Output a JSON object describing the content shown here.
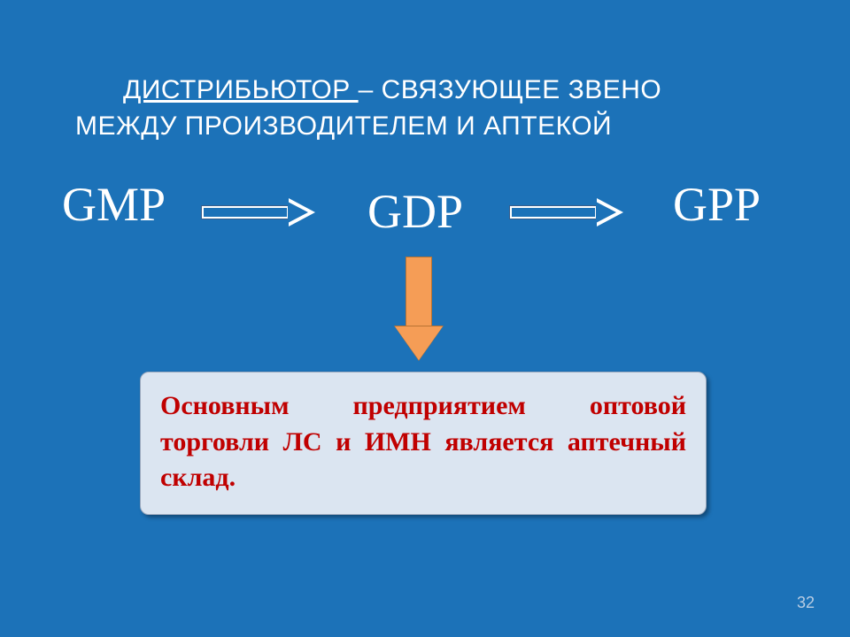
{
  "slide": {
    "background_color": "#1c72b8",
    "title": {
      "word_underlined": "ДИСТРИБЬЮТОР ",
      "rest_line1": "– СВЯЗУЮЩЕЕ ЗВЕНО",
      "line2": "МЕЖДУ ПРОИЗВОДИТЕЛЕМ И АПТЕКОЙ",
      "color": "#ffffff",
      "fontsize": 30
    },
    "flow": {
      "nodes": [
        "GMP",
        "GDP",
        "GPP"
      ],
      "node_color": "#ffffff",
      "node_font": "Times New Roman",
      "node_fontsize": 54,
      "h_arrow": {
        "outline_color": "#ffffff",
        "fill_color": "#1c72b8",
        "style": "outlined-block-arrow"
      },
      "v_arrow": {
        "fill_color": "#f59d56",
        "border_color": "#b87332",
        "direction": "down"
      }
    },
    "info_box": {
      "text": "Основным предприятием оптовой торговли ЛС и ИМН является аптечный склад.",
      "background_color": "#dbe5f1",
      "text_color": "#c00000",
      "font": "Times New Roman",
      "fontsize": 30,
      "font_weight": "bold",
      "border_radius": 10,
      "shadow": true
    },
    "page_number": "32",
    "page_number_color": "#b9cde3"
  }
}
